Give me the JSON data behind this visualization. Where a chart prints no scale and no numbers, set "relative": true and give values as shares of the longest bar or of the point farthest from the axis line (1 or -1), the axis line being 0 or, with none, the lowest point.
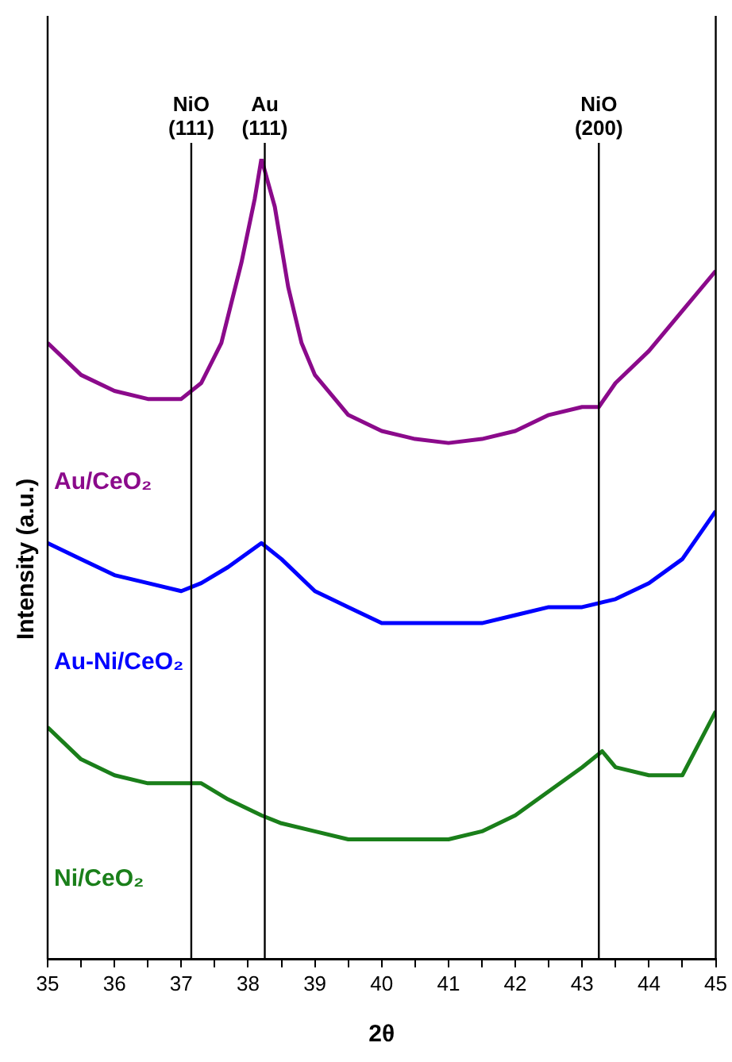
{
  "chart_data": {
    "type": "line",
    "xlabel": "2θ",
    "ylabel": "Intensity (a.u.)",
    "relative": true,
    "xlim": [
      35,
      45
    ],
    "xticks": [
      35,
      {
        "value": 35.5,
        "label": null
      },
      36,
      {
        "value": 36.5,
        "label": null
      },
      37,
      {
        "value": 37.5,
        "label": null
      },
      38,
      {
        "value": 38.5,
        "label": null
      },
      39,
      {
        "value": 39.5,
        "label": null
      },
      40,
      {
        "value": 40.5,
        "label": null
      },
      41,
      {
        "value": 41.5,
        "label": null
      },
      42,
      {
        "value": 42.5,
        "label": null
      },
      43,
      {
        "value": 43.5,
        "label": null
      },
      44,
      {
        "value": 44.5,
        "label": null
      },
      45
    ],
    "grid": false,
    "legend": false,
    "marker": "none",
    "line_style": "solid",
    "series": [
      {
        "name": "Au/CeO₂",
        "color": "#8b0a8b",
        "x": [
          35,
          35.5,
          36,
          36.5,
          37,
          37.3,
          37.6,
          37.9,
          38.1,
          38.2,
          38.4,
          38.6,
          38.8,
          39,
          39.5,
          40,
          40.5,
          41,
          41.5,
          42,
          42.5,
          43,
          43.25,
          43.5,
          44,
          44.5,
          45
        ],
        "values": [
          0.77,
          0.73,
          0.71,
          0.7,
          0.7,
          0.72,
          0.77,
          0.87,
          0.95,
          1,
          0.94,
          0.84,
          0.77,
          0.73,
          0.68,
          0.66,
          0.65,
          0.645,
          0.65,
          0.66,
          0.68,
          0.69,
          0.69,
          0.72,
          0.76,
          0.81,
          0.86
        ]
      },
      {
        "name": "Au-Ni/CeO₂",
        "color": "#0000ff",
        "x": [
          35,
          35.5,
          36,
          36.5,
          37,
          37.3,
          37.7,
          38.2,
          38.5,
          39,
          39.5,
          40,
          40.5,
          41,
          41.5,
          42,
          42.5,
          43,
          43.5,
          44,
          44.5,
          45
        ],
        "values": [
          0.52,
          0.5,
          0.48,
          0.47,
          0.46,
          0.47,
          0.49,
          0.52,
          0.5,
          0.46,
          0.44,
          0.42,
          0.42,
          0.42,
          0.42,
          0.43,
          0.44,
          0.44,
          0.45,
          0.47,
          0.5,
          0.56
        ]
      },
      {
        "name": "Ni/CeO₂",
        "color": "#1a7f1a",
        "x": [
          35,
          35.5,
          36,
          36.5,
          37,
          37.3,
          37.7,
          38.2,
          38.5,
          39,
          39.5,
          40,
          40.5,
          41,
          41.5,
          42,
          42.5,
          43,
          43.3,
          43.5,
          44,
          44.5,
          45
        ],
        "values": [
          0.29,
          0.25,
          0.23,
          0.22,
          0.22,
          0.22,
          0.2,
          0.18,
          0.17,
          0.16,
          0.15,
          0.15,
          0.15,
          0.15,
          0.16,
          0.18,
          0.21,
          0.24,
          0.26,
          0.24,
          0.23,
          0.23,
          0.31
        ]
      }
    ],
    "ref_lines": [
      {
        "axis": "x",
        "value": 37.15,
        "label": "NiO\n(111)",
        "color": "#000000"
      },
      {
        "axis": "x",
        "value": 38.25,
        "label": "Au\n(111)",
        "color": "#000000"
      },
      {
        "axis": "x",
        "value": 43.25,
        "label": "NiO\n(200)",
        "color": "#000000"
      }
    ]
  }
}
